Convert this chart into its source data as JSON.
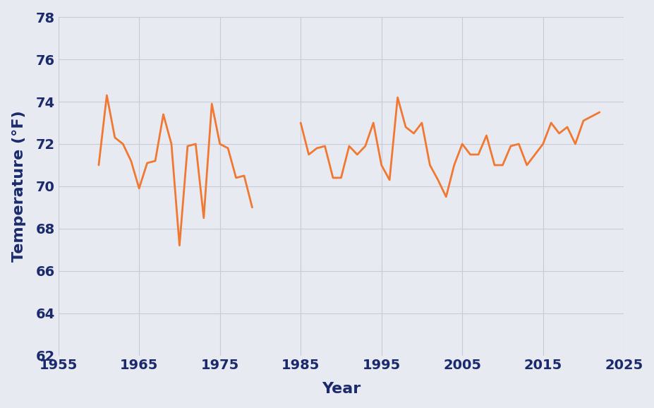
{
  "years": [
    1960,
    1961,
    1962,
    1963,
    1964,
    1965,
    1966,
    1967,
    1968,
    1969,
    1970,
    1971,
    1972,
    1973,
    1974,
    1975,
    1976,
    1977,
    1978,
    1979,
    1980,
    1981,
    1982,
    1983,
    1984,
    1985,
    1986,
    1987,
    1988,
    1989,
    1990,
    1991,
    1992,
    1993,
    1994,
    1995,
    1996,
    1997,
    1998,
    1999,
    2000,
    2001,
    2002,
    2003,
    2004,
    2005,
    2006,
    2007,
    2008,
    2009,
    2010,
    2011,
    2012,
    2013,
    2014,
    2015,
    2016,
    2017,
    2018,
    2019,
    2020,
    2021,
    2022
  ],
  "temps": [
    71.0,
    74.3,
    72.3,
    72.0,
    71.2,
    69.9,
    71.1,
    71.2,
    73.4,
    72.0,
    67.2,
    71.9,
    72.0,
    68.5,
    73.9,
    72.0,
    71.8,
    70.4,
    70.5,
    69.0,
    null,
    null,
    null,
    null,
    null,
    73.0,
    71.5,
    71.8,
    71.9,
    70.4,
    70.4,
    71.9,
    71.5,
    71.9,
    73.0,
    71.0,
    70.3,
    74.2,
    72.8,
    72.5,
    73.0,
    71.0,
    70.3,
    69.5,
    71.0,
    72.0,
    71.5,
    71.5,
    72.4,
    71.0,
    71.0,
    71.9,
    72.0,
    71.0,
    71.5,
    72.0,
    73.0,
    72.5,
    72.8,
    72.0,
    73.1,
    73.3,
    73.5
  ],
  "line_color": "#f07830",
  "line_width": 2.0,
  "bg_color": "#e8eaf2",
  "grid_color": "#c8cad6",
  "text_color": "#1a2a6c",
  "xlabel": "Year",
  "ylabel": "Temperature (°F)",
  "xlim": [
    1955,
    2025
  ],
  "ylim": [
    62,
    78
  ],
  "xticks": [
    1955,
    1965,
    1975,
    1985,
    1995,
    2005,
    2015,
    2025
  ],
  "yticks": [
    62,
    64,
    66,
    68,
    70,
    72,
    74,
    76,
    78
  ],
  "xlabel_fontsize": 16,
  "ylabel_fontsize": 16,
  "tick_fontsize": 14
}
